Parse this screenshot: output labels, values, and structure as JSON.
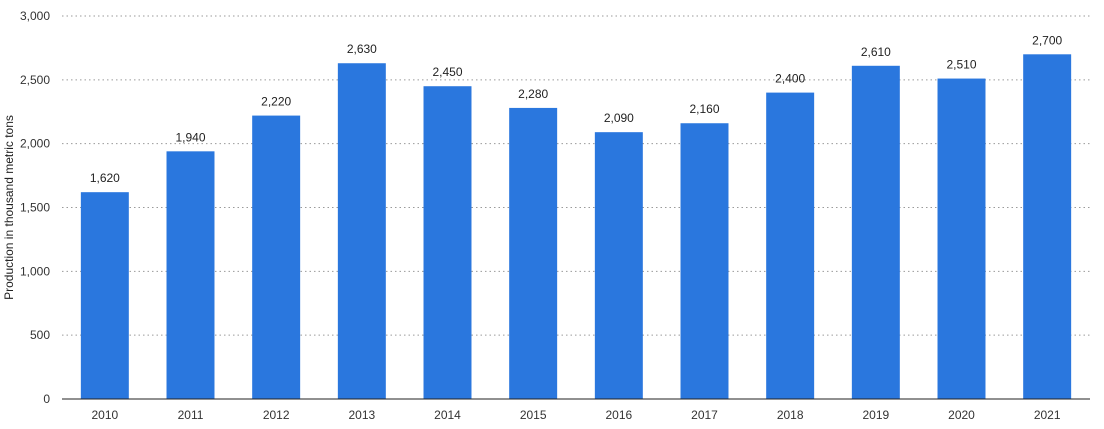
{
  "chart_data": {
    "type": "bar",
    "categories": [
      "2010",
      "2011",
      "2012",
      "2013",
      "2014",
      "2015",
      "2016",
      "2017",
      "2018",
      "2019",
      "2020",
      "2021"
    ],
    "values": [
      1620,
      1940,
      2220,
      2630,
      2450,
      2280,
      2090,
      2160,
      2400,
      2610,
      2510,
      2700
    ],
    "value_labels": [
      "1,620",
      "1,940",
      "2,220",
      "2,630",
      "2,450",
      "2,280",
      "2,090",
      "2,160",
      "2,400",
      "2,610",
      "2,510",
      "2,700"
    ],
    "y_ticks": [
      0,
      500,
      1000,
      1500,
      2000,
      2500,
      3000
    ],
    "y_tick_labels": [
      "0",
      "500",
      "1,000",
      "1,500",
      "2,000",
      "2,500",
      "3,000"
    ],
    "title": "",
    "xlabel": "",
    "ylabel": "Production in thousand metric tons",
    "ylim": [
      0,
      3000
    ],
    "grid": "horizontal-dotted",
    "legend": "none",
    "bar_color": "#2a77de"
  }
}
